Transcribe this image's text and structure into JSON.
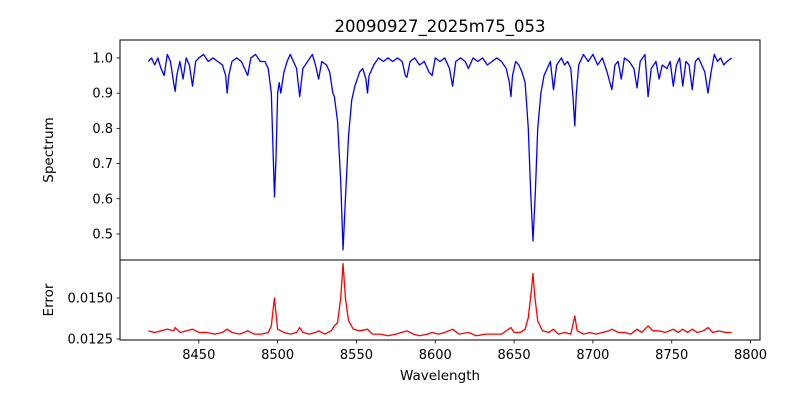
{
  "chart_data": {
    "type": "line",
    "title": "20090927_2025m75_053",
    "xlabel": "Wavelength",
    "xlim": [
      8400,
      8806
    ],
    "xticks": [
      8450,
      8500,
      8550,
      8600,
      8650,
      8700,
      8750,
      8800
    ],
    "grid": false,
    "panels": [
      {
        "name": "spectrum",
        "ylabel": "Spectrum",
        "ylim": [
          0.426,
          1.051
        ],
        "yticks": [
          0.5,
          0.6,
          0.7,
          0.8,
          0.9,
          1.0
        ],
        "ytick_labels": [
          "0.5",
          "0.6",
          "0.7",
          "0.8",
          "0.9",
          "1.0"
        ],
        "color": "#0000ff",
        "points": [
          [
            8418,
            0.99
          ],
          [
            8420,
            1.0
          ],
          [
            8422,
            0.98
          ],
          [
            8424,
            1.0
          ],
          [
            8426,
            0.97
          ],
          [
            8428,
            0.95
          ],
          [
            8430,
            1.01
          ],
          [
            8432,
            0.99
          ],
          [
            8434,
            0.93
          ],
          [
            8435,
            0.905
          ],
          [
            8436,
            0.95
          ],
          [
            8438,
            0.99
          ],
          [
            8440,
            0.94
          ],
          [
            8442,
            1.0
          ],
          [
            8444,
            0.98
          ],
          [
            8446,
            0.92
          ],
          [
            8448,
            0.99
          ],
          [
            8450,
            1.0
          ],
          [
            8453,
            1.01
          ],
          [
            8456,
            0.99
          ],
          [
            8459,
            1.0
          ],
          [
            8462,
            0.99
          ],
          [
            8465,
            0.98
          ],
          [
            8467,
            0.95
          ],
          [
            8468,
            0.9
          ],
          [
            8469,
            0.95
          ],
          [
            8471,
            0.99
          ],
          [
            8474,
            1.0
          ],
          [
            8477,
            0.99
          ],
          [
            8480,
            0.96
          ],
          [
            8481,
            0.95
          ],
          [
            8483,
            1.0
          ],
          [
            8486,
            1.01
          ],
          [
            8489,
            0.99
          ],
          [
            8492,
            0.99
          ],
          [
            8494,
            0.97
          ],
          [
            8496,
            0.9
          ],
          [
            8497,
            0.75
          ],
          [
            8498,
            0.605
          ],
          [
            8499,
            0.72
          ],
          [
            8500,
            0.9
          ],
          [
            8501,
            0.93
          ],
          [
            8502,
            0.9
          ],
          [
            8504,
            0.96
          ],
          [
            8506,
            0.99
          ],
          [
            8508,
            1.01
          ],
          [
            8510,
            0.99
          ],
          [
            8512,
            0.97
          ],
          [
            8514,
            0.89
          ],
          [
            8516,
            0.97
          ],
          [
            8519,
            0.99
          ],
          [
            8522,
            1.01
          ],
          [
            8524,
            0.98
          ],
          [
            8526,
            0.94
          ],
          [
            8528,
            0.99
          ],
          [
            8531,
            0.98
          ],
          [
            8533,
            0.96
          ],
          [
            8535,
            0.9
          ],
          [
            8536,
            0.89
          ],
          [
            8538,
            0.82
          ],
          [
            8540,
            0.65
          ],
          [
            8541.5,
            0.455
          ],
          [
            8543,
            0.6
          ],
          [
            8545,
            0.78
          ],
          [
            8547,
            0.88
          ],
          [
            8549,
            0.92
          ],
          [
            8552,
            0.96
          ],
          [
            8554,
            0.97
          ],
          [
            8556,
            0.94
          ],
          [
            8557,
            0.9
          ],
          [
            8558,
            0.95
          ],
          [
            8561,
            0.98
          ],
          [
            8564,
            1.0
          ],
          [
            8567,
            0.99
          ],
          [
            8570,
            1.0
          ],
          [
            8573,
            0.99
          ],
          [
            8576,
            1.0
          ],
          [
            8579,
            0.99
          ],
          [
            8581,
            0.95
          ],
          [
            8582,
            0.945
          ],
          [
            8584,
            0.99
          ],
          [
            8587,
            1.0
          ],
          [
            8590,
            0.98
          ],
          [
            8593,
            0.99
          ],
          [
            8596,
            0.96
          ],
          [
            8598,
            0.95
          ],
          [
            8600,
            1.0
          ],
          [
            8603,
            0.99
          ],
          [
            8606,
            1.0
          ],
          [
            8609,
            0.97
          ],
          [
            8611,
            0.92
          ],
          [
            8613,
            0.99
          ],
          [
            8616,
            1.0
          ],
          [
            8619,
            0.99
          ],
          [
            8621,
            0.97
          ],
          [
            8624,
            1.0
          ],
          [
            8627,
            0.99
          ],
          [
            8630,
            1.0
          ],
          [
            8633,
            0.98
          ],
          [
            8636,
            0.99
          ],
          [
            8639,
            1.0
          ],
          [
            8642,
            0.99
          ],
          [
            8645,
            0.97
          ],
          [
            8647,
            0.93
          ],
          [
            8648,
            0.89
          ],
          [
            8649,
            0.95
          ],
          [
            8651,
            0.99
          ],
          [
            8653,
            0.98
          ],
          [
            8655,
            0.96
          ],
          [
            8657,
            0.93
          ],
          [
            8659,
            0.8
          ],
          [
            8660.5,
            0.62
          ],
          [
            8662,
            0.48
          ],
          [
            8663.5,
            0.62
          ],
          [
            8665,
            0.8
          ],
          [
            8667,
            0.9
          ],
          [
            8669,
            0.95
          ],
          [
            8671,
            0.97
          ],
          [
            8673,
            0.99
          ],
          [
            8675,
            0.91
          ],
          [
            8677,
            0.98
          ],
          [
            8680,
            1.0
          ],
          [
            8682,
            0.98
          ],
          [
            8684,
            0.99
          ],
          [
            8686,
            0.97
          ],
          [
            8687.5,
            0.88
          ],
          [
            8688.5,
            0.807
          ],
          [
            8689.5,
            0.9
          ],
          [
            8691,
            0.98
          ],
          [
            8694,
            1.01
          ],
          [
            8697,
            0.99
          ],
          [
            8700,
            1.01
          ],
          [
            8703,
            0.98
          ],
          [
            8706,
            1.0
          ],
          [
            8709,
            0.96
          ],
          [
            8712,
            0.91
          ],
          [
            8714,
            0.98
          ],
          [
            8716,
            0.99
          ],
          [
            8718,
            0.94
          ],
          [
            8720,
            1.0
          ],
          [
            8723,
            0.99
          ],
          [
            8726,
            0.97
          ],
          [
            8728,
            0.915
          ],
          [
            8730,
            0.99
          ],
          [
            8733,
            1.01
          ],
          [
            8735,
            0.89
          ],
          [
            8737,
            0.97
          ],
          [
            8740,
            0.99
          ],
          [
            8742,
            0.94
          ],
          [
            8744,
            0.98
          ],
          [
            8747,
            0.97
          ],
          [
            8749,
            0.99
          ],
          [
            8751,
            0.92
          ],
          [
            8753,
            0.98
          ],
          [
            8755,
            1.0
          ],
          [
            8757,
            0.92
          ],
          [
            8759,
            0.99
          ],
          [
            8761,
            0.98
          ],
          [
            8763,
            0.91
          ],
          [
            8765,
            0.99
          ],
          [
            8767,
            1.0
          ],
          [
            8769,
            0.98
          ],
          [
            8771,
            0.96
          ],
          [
            8773,
            0.9
          ],
          [
            8775,
            0.96
          ],
          [
            8777,
            1.01
          ],
          [
            8779,
            0.99
          ],
          [
            8781,
            1.0
          ],
          [
            8783,
            0.98
          ],
          [
            8785,
            0.99
          ],
          [
            8788,
            1.0
          ]
        ]
      },
      {
        "name": "error",
        "ylabel": "Error",
        "ylim": [
          0.01244,
          0.01732
        ],
        "yticks": [
          0.0125,
          0.015
        ],
        "ytick_labels": [
          "0.0125",
          "0.0150"
        ],
        "color": "#ff0000",
        "points": [
          [
            8418,
            0.013
          ],
          [
            8422,
            0.0129
          ],
          [
            8426,
            0.013
          ],
          [
            8430,
            0.0131
          ],
          [
            8434,
            0.013
          ],
          [
            8435,
            0.0132
          ],
          [
            8438,
            0.0129
          ],
          [
            8442,
            0.013
          ],
          [
            8446,
            0.0131
          ],
          [
            8450,
            0.0129
          ],
          [
            8455,
            0.0129
          ],
          [
            8460,
            0.0128
          ],
          [
            8465,
            0.0129
          ],
          [
            8468,
            0.0131
          ],
          [
            8471,
            0.0129
          ],
          [
            8476,
            0.0128
          ],
          [
            8481,
            0.013
          ],
          [
            8485,
            0.0128
          ],
          [
            8490,
            0.0128
          ],
          [
            8494,
            0.0129
          ],
          [
            8496,
            0.0133
          ],
          [
            8497,
            0.0142
          ],
          [
            8498,
            0.015
          ],
          [
            8499,
            0.014
          ],
          [
            8500,
            0.0131
          ],
          [
            8504,
            0.0129
          ],
          [
            8508,
            0.0128
          ],
          [
            8512,
            0.0129
          ],
          [
            8514,
            0.0132
          ],
          [
            8516,
            0.0129
          ],
          [
            8520,
            0.0128
          ],
          [
            8524,
            0.0129
          ],
          [
            8526,
            0.013
          ],
          [
            8530,
            0.0128
          ],
          [
            8534,
            0.013
          ],
          [
            8536,
            0.0133
          ],
          [
            8538,
            0.0135
          ],
          [
            8540,
            0.015
          ],
          [
            8541.5,
            0.0171
          ],
          [
            8543,
            0.015
          ],
          [
            8545,
            0.0136
          ],
          [
            8548,
            0.0131
          ],
          [
            8552,
            0.013
          ],
          [
            8557,
            0.0131
          ],
          [
            8560,
            0.0128
          ],
          [
            8565,
            0.0128
          ],
          [
            8570,
            0.0127
          ],
          [
            8575,
            0.0128
          ],
          [
            8582,
            0.013
          ],
          [
            8586,
            0.0128
          ],
          [
            8590,
            0.0127
          ],
          [
            8595,
            0.0128
          ],
          [
            8598,
            0.0129
          ],
          [
            8602,
            0.0128
          ],
          [
            8606,
            0.0129
          ],
          [
            8611,
            0.0131
          ],
          [
            8615,
            0.0128
          ],
          [
            8621,
            0.0129
          ],
          [
            8626,
            0.0127
          ],
          [
            8632,
            0.0128
          ],
          [
            8638,
            0.0128
          ],
          [
            8642,
            0.0128
          ],
          [
            8648,
            0.0132
          ],
          [
            8650,
            0.0129
          ],
          [
            8654,
            0.0129
          ],
          [
            8657,
            0.0131
          ],
          [
            8659,
            0.0138
          ],
          [
            8661,
            0.0155
          ],
          [
            8662,
            0.0165
          ],
          [
            8663,
            0.0152
          ],
          [
            8665,
            0.0136
          ],
          [
            8668,
            0.013
          ],
          [
            8672,
            0.0129
          ],
          [
            8675,
            0.0131
          ],
          [
            8678,
            0.0128
          ],
          [
            8682,
            0.0129
          ],
          [
            8686,
            0.0128
          ],
          [
            8688.5,
            0.0139
          ],
          [
            8690,
            0.013
          ],
          [
            8694,
            0.0128
          ],
          [
            8698,
            0.0129
          ],
          [
            8702,
            0.0128
          ],
          [
            8706,
            0.0129
          ],
          [
            8710,
            0.013
          ],
          [
            8712,
            0.0131
          ],
          [
            8716,
            0.0129
          ],
          [
            8720,
            0.0129
          ],
          [
            8724,
            0.0128
          ],
          [
            8728,
            0.0131
          ],
          [
            8731,
            0.0129
          ],
          [
            8735,
            0.0133
          ],
          [
            8738,
            0.013
          ],
          [
            8742,
            0.013
          ],
          [
            8746,
            0.0129
          ],
          [
            8751,
            0.0131
          ],
          [
            8754,
            0.0129
          ],
          [
            8757,
            0.0131
          ],
          [
            8760,
            0.0129
          ],
          [
            8763,
            0.0131
          ],
          [
            8766,
            0.0129
          ],
          [
            8770,
            0.013
          ],
          [
            8773,
            0.0132
          ],
          [
            8776,
            0.0129
          ],
          [
            8780,
            0.013
          ],
          [
            8784,
            0.0129
          ],
          [
            8788,
            0.0129
          ]
        ]
      }
    ]
  }
}
